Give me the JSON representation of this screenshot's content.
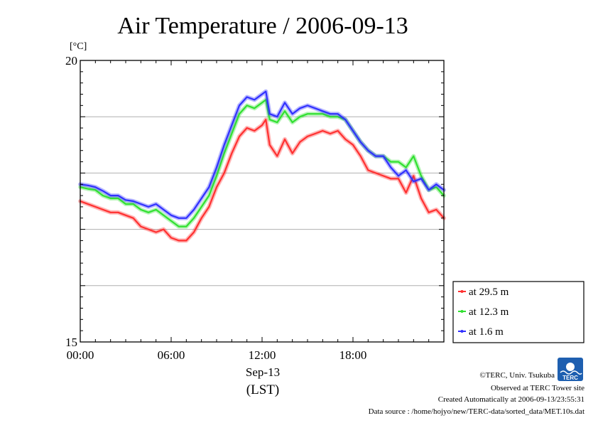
{
  "chart_data": {
    "type": "line",
    "title": "Air Temperature / 2006-09-13",
    "ylabel": "[°C]",
    "xlabel": "Sep-13",
    "xlabel_sub": "(LST)",
    "ylim": [
      15,
      20
    ],
    "ytick_labels": [
      {
        "value": 20,
        "label": "20"
      },
      {
        "value": 15,
        "label": "15"
      }
    ],
    "ygrid_values": [
      19,
      18,
      17,
      16
    ],
    "xlim_hours": [
      0,
      24
    ],
    "xtick_labels": [
      {
        "hour": 0,
        "label": "00:00"
      },
      {
        "hour": 6,
        "label": "06:00"
      },
      {
        "hour": 12,
        "label": "12:00"
      },
      {
        "hour": 18,
        "label": "18:00"
      }
    ],
    "grid": "horizontal",
    "legend_position": "outside-right-bottom",
    "series": [
      {
        "name": "at 29.5 m",
        "color": "#ff3030",
        "x": [
          0,
          0.5,
          1,
          1.5,
          2,
          2.5,
          3,
          3.5,
          4,
          4.5,
          5,
          5.5,
          6,
          6.5,
          7,
          7.5,
          8,
          8.5,
          9,
          9.5,
          10,
          10.5,
          11,
          11.5,
          12,
          12.25,
          12.5,
          13,
          13.5,
          14,
          14.5,
          15,
          15.5,
          16,
          16.5,
          17,
          17.5,
          18,
          18.5,
          19,
          19.5,
          20,
          20.5,
          21,
          21.5,
          22,
          22.5,
          23,
          23.5,
          24
        ],
        "y": [
          17.5,
          17.45,
          17.4,
          17.35,
          17.3,
          17.3,
          17.25,
          17.2,
          17.05,
          17.0,
          16.95,
          17.0,
          16.85,
          16.8,
          16.8,
          16.95,
          17.2,
          17.4,
          17.75,
          18.0,
          18.35,
          18.65,
          18.8,
          18.75,
          18.85,
          18.95,
          18.5,
          18.3,
          18.6,
          18.35,
          18.55,
          18.65,
          18.7,
          18.75,
          18.7,
          18.75,
          18.6,
          18.5,
          18.3,
          18.05,
          18.0,
          17.95,
          17.9,
          17.9,
          17.65,
          17.95,
          17.55,
          17.3,
          17.35,
          17.2
        ]
      },
      {
        "name": "at 12.3 m",
        "color": "#30e030",
        "x": [
          0,
          0.5,
          1,
          1.5,
          2,
          2.5,
          3,
          3.5,
          4,
          4.5,
          5,
          5.5,
          6,
          6.5,
          7,
          7.5,
          8,
          8.5,
          9,
          9.5,
          10,
          10.5,
          11,
          11.5,
          12,
          12.25,
          12.5,
          13,
          13.5,
          14,
          14.5,
          15,
          15.5,
          16,
          16.5,
          17,
          17.5,
          18,
          18.5,
          19,
          19.5,
          20,
          20.5,
          21,
          21.5,
          22,
          22.5,
          23,
          23.5,
          24
        ],
        "y": [
          17.75,
          17.72,
          17.7,
          17.6,
          17.55,
          17.55,
          17.45,
          17.45,
          17.35,
          17.3,
          17.35,
          17.25,
          17.15,
          17.05,
          17.05,
          17.2,
          17.4,
          17.6,
          17.95,
          18.35,
          18.7,
          19.05,
          19.2,
          19.15,
          19.25,
          19.3,
          18.95,
          18.9,
          19.1,
          18.9,
          19.0,
          19.05,
          19.05,
          19.05,
          19.0,
          19.0,
          18.95,
          18.75,
          18.55,
          18.4,
          18.3,
          18.3,
          18.2,
          18.2,
          18.1,
          18.3,
          17.95,
          17.7,
          17.75,
          17.6
        ]
      },
      {
        "name": "at 1.6 m",
        "color": "#3030ff",
        "x": [
          0,
          0.5,
          1,
          1.5,
          2,
          2.5,
          3,
          3.5,
          4,
          4.5,
          5,
          5.5,
          6,
          6.5,
          7,
          7.5,
          8,
          8.5,
          9,
          9.5,
          10,
          10.5,
          11,
          11.5,
          12,
          12.25,
          12.5,
          13,
          13.5,
          14,
          14.5,
          15,
          15.5,
          16,
          16.5,
          17,
          17.5,
          18,
          18.5,
          19,
          19.5,
          20,
          20.5,
          21,
          21.5,
          22,
          22.5,
          23,
          23.5,
          24
        ],
        "y": [
          17.8,
          17.78,
          17.75,
          17.68,
          17.6,
          17.6,
          17.52,
          17.5,
          17.45,
          17.4,
          17.45,
          17.35,
          17.25,
          17.2,
          17.2,
          17.35,
          17.55,
          17.75,
          18.1,
          18.5,
          18.85,
          19.2,
          19.35,
          19.3,
          19.4,
          19.45,
          19.05,
          19.0,
          19.25,
          19.05,
          19.15,
          19.2,
          19.15,
          19.1,
          19.05,
          19.05,
          18.95,
          18.75,
          18.55,
          18.4,
          18.3,
          18.3,
          18.1,
          17.95,
          18.05,
          17.85,
          17.9,
          17.7,
          17.8,
          17.7
        ]
      }
    ]
  },
  "footer": {
    "copyright": "©TERC, Univ. Tsukuba",
    "site": "Observed at TERC Tower site",
    "created": "Created Automatically at 2006-09-13/23:55:31",
    "source": "Data source : /home/hojyo/new/TERC-data/sorted_data/MET.10s.dat"
  },
  "logo": {
    "text": "TERC",
    "color": "#1e5fb0"
  }
}
